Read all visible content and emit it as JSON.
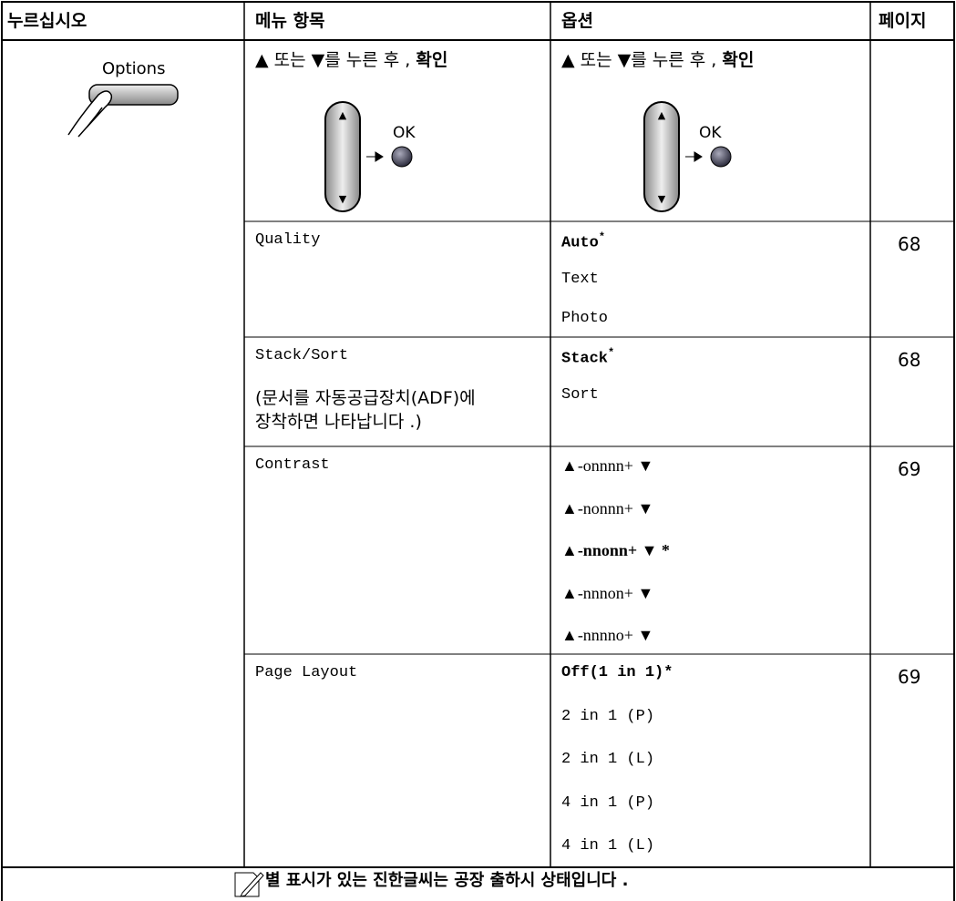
{
  "header": [
    "누르십시오",
    "메뉴 항목",
    "옵션",
    "페이지"
  ],
  "press": {
    "button_label": "Options"
  },
  "instruction": {
    "text": "▲ 또는 ▼를 누른 후 ,",
    "bold": "확인",
    "ok_label": "OK"
  },
  "rows": [
    {
      "item": "Quality",
      "options": [
        {
          "text": "Auto",
          "star": "*",
          "bold": true
        },
        {
          "text": "Text"
        },
        {
          "text": "Photo"
        }
      ],
      "page": 68
    },
    {
      "item": "Stack/Sort",
      "note": [
        "(문서를 자동공급장치(ADF)에",
        "장착하면 나타납니다 .)"
      ],
      "options": [
        {
          "text": "Stack",
          "star": "*",
          "bold": true
        },
        {
          "text": "Sort"
        }
      ],
      "page": 68
    },
    {
      "item": "Contrast",
      "options": [
        {
          "text": "▲-onnnn+ ▼"
        },
        {
          "text": "▲-nonnn+ ▼"
        },
        {
          "text": "▲-nnonn+ ▼ *",
          "bold": true
        },
        {
          "text": "▲-nnnon+ ▼"
        },
        {
          "text": "▲-nnnno+ ▼"
        }
      ],
      "page": 69
    },
    {
      "item": "Page Layout",
      "options": [
        {
          "text": "Off(1 in 1)*",
          "bold": true
        },
        {
          "text": "2 in 1 (P)"
        },
        {
          "text": "2 in 1 (L)"
        },
        {
          "text": "4 in 1 (P)"
        },
        {
          "text": "4 in 1 (L)"
        }
      ],
      "page": 69
    }
  ],
  "footer": {
    "note": "별 표시가 있는 진한글씨는 공장 출하시 상태입니다 ."
  }
}
